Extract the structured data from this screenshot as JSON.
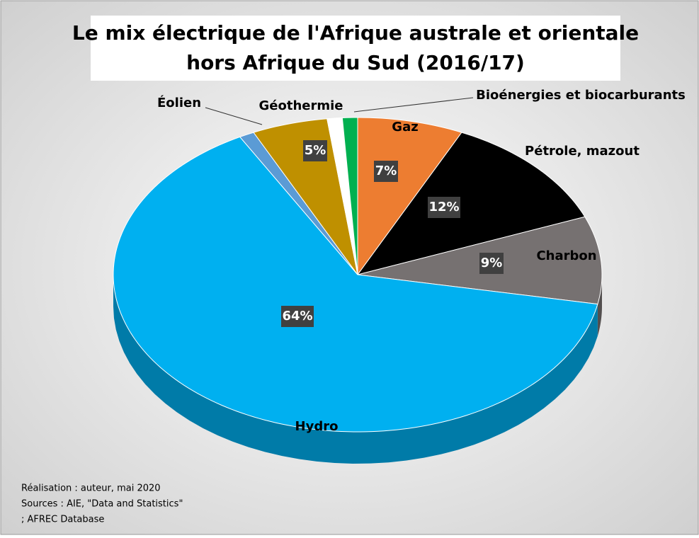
{
  "chart_data": {
    "type": "pie",
    "title": [
      "Le mix électrique de l'Afrique australe et orientale",
      "hors Afrique du Sud (2016/17)"
    ],
    "categories": [
      "Gaz",
      "Pétrole, mazout",
      "Charbon",
      "Hydro",
      "Éolien",
      "Géothermie",
      null,
      "Bioénergies et biocarburants"
    ],
    "values": [
      7,
      12,
      9,
      64,
      1,
      5,
      1,
      1
    ],
    "value_labels": [
      "7%",
      "12%",
      "9%",
      "64%",
      null,
      "5%",
      null,
      null
    ],
    "colors": [
      "#ed7d31",
      "#000000",
      "#767171",
      "#00b0f0",
      "#5b9bd5",
      "#bf9000",
      "#ffffff",
      "#00b050"
    ],
    "notes": [
      "Réalisation : auteur, mai 2020",
      "Sources : AIE, \"Data and Statistics\"",
      "; AFREC Database"
    ]
  }
}
